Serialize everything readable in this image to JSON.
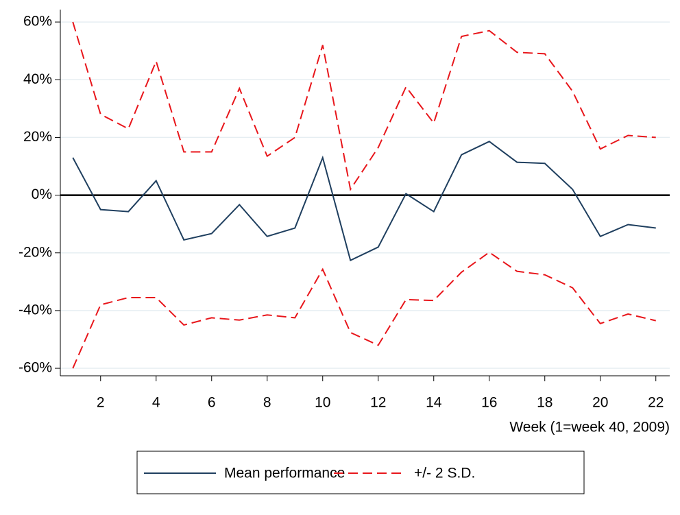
{
  "chart_data": {
    "type": "line",
    "x_label": "Week (1=week 40, 2009)",
    "x": [
      1,
      2,
      3,
      4,
      5,
      6,
      7,
      8,
      9,
      10,
      11,
      12,
      13,
      14,
      15,
      16,
      17,
      18,
      19,
      20,
      21,
      22
    ],
    "series": [
      {
        "name": "Mean performance",
        "color": "#1f3f5f",
        "dashed": false,
        "values": [
          13,
          -5,
          -5.7,
          5,
          -15.5,
          -13.3,
          -3.3,
          -14.3,
          -11.4,
          13,
          -22.6,
          -18,
          0.5,
          -5.7,
          14,
          18.6,
          11.4,
          11,
          2,
          -14.3,
          -10.2,
          -11.4
        ]
      },
      {
        "name": "+/- 2 S.D.",
        "color": "#e8161b",
        "dashed": true,
        "values": [
          60,
          28,
          23,
          46.4,
          15,
          15,
          37,
          13.5,
          20,
          52,
          2,
          16.5,
          37.5,
          25,
          55,
          57,
          49.5,
          49,
          36,
          16,
          20.7,
          20
        ]
      },
      {
        "color": "#e8161b",
        "dashed": true,
        "values": [
          -60,
          -38,
          -35.5,
          -35.5,
          -45,
          -42.5,
          -43.3,
          -41.5,
          -42.5,
          -25.7,
          -47.6,
          -52,
          -36.2,
          -36.5,
          -26.7,
          -19.8,
          -26.4,
          -27.6,
          -32.1,
          -44.5,
          -41.2,
          -43.5
        ]
      }
    ],
    "xlim": [
      0.5,
      22.5
    ],
    "xticks": [
      2,
      4,
      6,
      8,
      10,
      12,
      14,
      16,
      18,
      20,
      22
    ],
    "ylim": [
      -62.6,
      64.3
    ],
    "yticks": [
      {
        "value": -60,
        "label": "-60%"
      },
      {
        "value": -40,
        "label": "-40%"
      },
      {
        "value": -20,
        "label": "-20%"
      },
      {
        "value": 0,
        "label": "0%"
      },
      {
        "value": 20,
        "label": "20%"
      },
      {
        "value": 40,
        "label": "40%"
      },
      {
        "value": 60,
        "label": "60%"
      }
    ],
    "reference_line": 0,
    "grid": true
  }
}
